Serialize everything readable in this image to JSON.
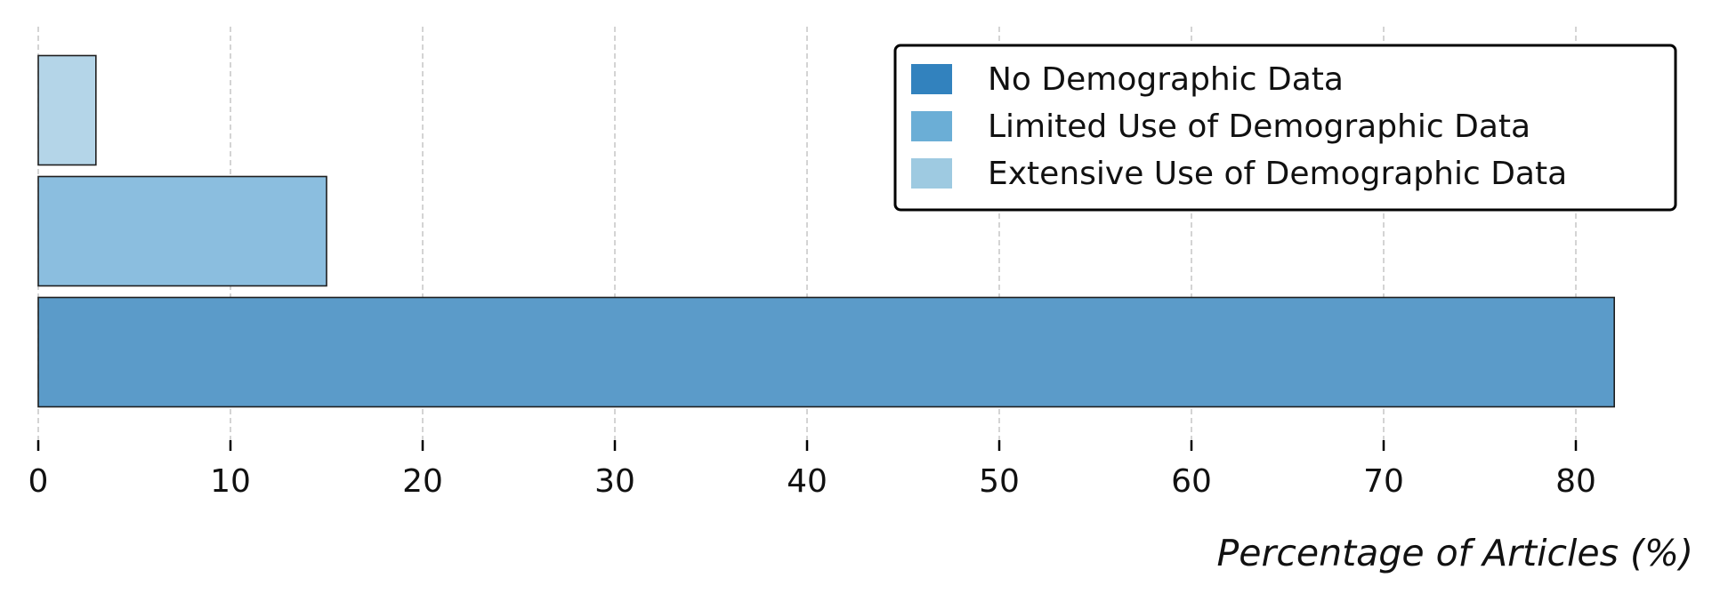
{
  "chart_data": {
    "type": "bar",
    "orientation": "horizontal",
    "categories": [
      "No Demographic Data",
      "Limited Use of Demographic Data",
      "Extensive Use of Demographic Data"
    ],
    "values": [
      82,
      15,
      3
    ],
    "bar_colors": [
      "#5b9bc9",
      "#8bbedf",
      "#b4d5e8"
    ],
    "xlabel": "Percentage of Articles (%)",
    "xlim": [
      0,
      85
    ],
    "xticks": [
      0,
      10,
      20,
      30,
      40,
      50,
      60,
      70,
      80
    ],
    "grid": "x, dashed",
    "legend": {
      "placement": "top-right",
      "entries": [
        {
          "label": "No Demographic Data",
          "color": "#3282be"
        },
        {
          "label": "Limited Use of Demographic Data",
          "color": "#6baed6"
        },
        {
          "label": "Extensive Use of Demographic Data",
          "color": "#9ecae1"
        }
      ]
    }
  }
}
